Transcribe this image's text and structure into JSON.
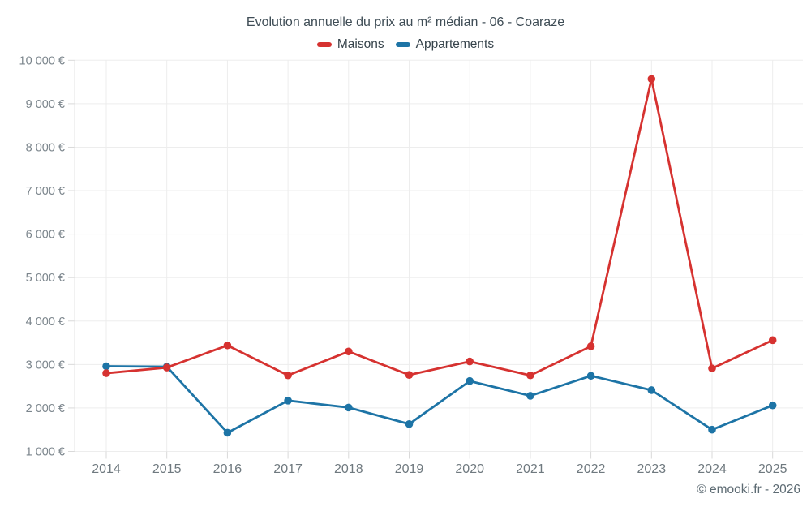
{
  "header": {
    "title": "Evolution annuelle du prix au m² médian - 06 - Coaraze"
  },
  "footer": {
    "credit": "© emooki.fr - 2026"
  },
  "colors": {
    "maisons": "#d63230",
    "appartements": "#1d74a6",
    "grid": "#ededed",
    "tick": "#d9d9d9",
    "plot_border": "#e3e3e3",
    "axis_text": "#7b858c",
    "x_axis_text": "#6f797f"
  },
  "chart_data": {
    "type": "line",
    "title": "Evolution annuelle du prix au m² médian - 06 - Coaraze",
    "xlabel": "",
    "ylabel": "",
    "categories": [
      "2014",
      "2015",
      "2016",
      "2017",
      "2018",
      "2019",
      "2020",
      "2021",
      "2022",
      "2023",
      "2024",
      "2025"
    ],
    "series": [
      {
        "name": "Maisons",
        "color": "#d63230",
        "values": [
          2800,
          2930,
          3440,
          2750,
          3300,
          2760,
          3070,
          2750,
          3420,
          9570,
          2910,
          3560
        ]
      },
      {
        "name": "Appartements",
        "color": "#1d74a6",
        "values": [
          2960,
          2950,
          1430,
          2170,
          2010,
          1630,
          2620,
          2280,
          2740,
          2410,
          1500,
          2060
        ]
      }
    ],
    "ylim": [
      1000,
      10000
    ],
    "yticks": [
      {
        "value": 10000,
        "label": "10 000 €"
      },
      {
        "value": 9000,
        "label": "9 000 €"
      },
      {
        "value": 8000,
        "label": "8 000 €"
      },
      {
        "value": 7000,
        "label": "7 000 €"
      },
      {
        "value": 6000,
        "label": "6 000 €"
      },
      {
        "value": 5000,
        "label": "5 000 €"
      },
      {
        "value": 4000,
        "label": "4 000 €"
      },
      {
        "value": 3000,
        "label": "3 000 €"
      },
      {
        "value": 2000,
        "label": "2 000 €"
      },
      {
        "value": 1000,
        "label": "1 000 €"
      }
    ],
    "grid": true,
    "legend_position": "top",
    "unit": "€/m²"
  }
}
